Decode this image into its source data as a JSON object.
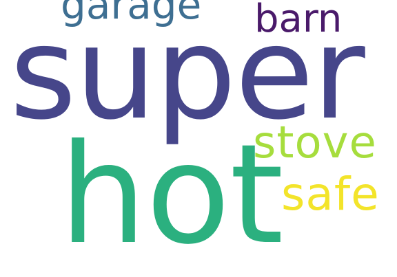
{
  "cloud": {
    "background": "#ffffff",
    "words": [
      {
        "key": "super",
        "text": "super",
        "color": "#46468a"
      },
      {
        "key": "hot",
        "text": "hot",
        "color": "#2bb07f"
      },
      {
        "key": "garage",
        "text": "garage",
        "color": "#3e6f92"
      },
      {
        "key": "barn",
        "text": "barn",
        "color": "#4a1a6a"
      },
      {
        "key": "stove",
        "text": "stove",
        "color": "#a6dd3d"
      },
      {
        "key": "safe",
        "text": "safe",
        "color": "#f3e42a"
      }
    ]
  }
}
